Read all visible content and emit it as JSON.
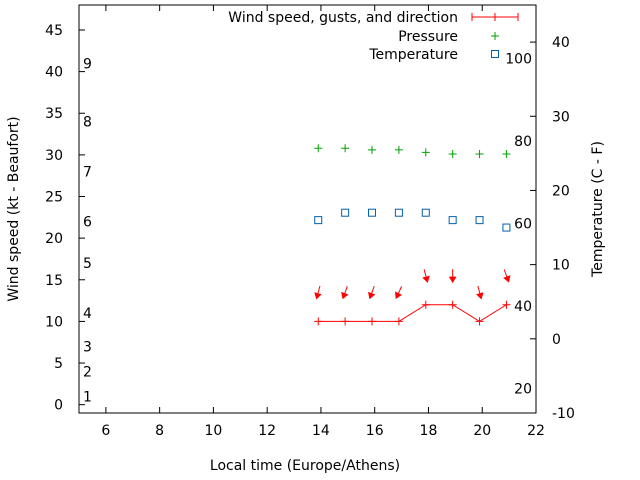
{
  "chart_data": {
    "type": "line",
    "xlabel": "Local time (Europe/Athens)",
    "ylabel_left": "Wind speed (kt - Beaufort)",
    "ylabel_right": "Temperature (C - F)",
    "x_range": [
      5,
      22
    ],
    "x_ticks": [
      6,
      8,
      10,
      12,
      14,
      16,
      18,
      20,
      22
    ],
    "y_left_range": [
      -1,
      48
    ],
    "y_left_ticks": [
      0,
      5,
      10,
      15,
      20,
      25,
      30,
      35,
      40,
      45
    ],
    "beaufort_labels": [
      {
        "label": "1",
        "knots": 1
      },
      {
        "label": "2",
        "knots": 4
      },
      {
        "label": "3",
        "knots": 7
      },
      {
        "label": "4",
        "knots": 11
      },
      {
        "label": "5",
        "knots": 17
      },
      {
        "label": "6",
        "knots": 22
      },
      {
        "label": "7",
        "knots": 28
      },
      {
        "label": "8",
        "knots": 34
      },
      {
        "label": "9",
        "knots": 41
      }
    ],
    "y_right_range": [
      -10,
      45
    ],
    "y_right_ticks": [
      -10,
      0,
      10,
      20,
      30,
      40
    ],
    "fahrenheit_labels": [
      "20",
      "40",
      "60",
      "80",
      "100"
    ],
    "legend": [
      {
        "name": "Wind speed, gusts, and direction",
        "color": "#ff0000",
        "marker": "line-plus"
      },
      {
        "name": "Pressure",
        "color": "#00a000",
        "marker": "plus"
      },
      {
        "name": "Temperature",
        "color": "#0060ad",
        "marker": "open-square"
      }
    ],
    "series": [
      {
        "name": "Wind speed, gusts, and direction",
        "axis": "left",
        "x": [
          13.9,
          14.9,
          15.9,
          16.9,
          17.9,
          18.9,
          19.9,
          20.9
        ],
        "values": [
          10,
          10,
          10,
          10,
          12,
          12,
          10,
          12
        ],
        "directions_deg": [
          345,
          340,
          340,
          335,
          15,
          0,
          15,
          20
        ]
      },
      {
        "name": "Pressure",
        "axis": "left",
        "x": [
          13.9,
          14.9,
          15.9,
          16.9,
          17.9,
          18.9,
          19.9,
          20.9
        ],
        "values": [
          30.8,
          30.8,
          30.6,
          30.6,
          30.3,
          30.1,
          30.1,
          30.1
        ]
      },
      {
        "name": "Temperature",
        "axis": "right",
        "x": [
          13.9,
          14.9,
          15.9,
          16.9,
          17.9,
          18.9,
          19.9,
          20.9
        ],
        "values": [
          16,
          17,
          17,
          17,
          17,
          16,
          16,
          15
        ]
      }
    ]
  }
}
